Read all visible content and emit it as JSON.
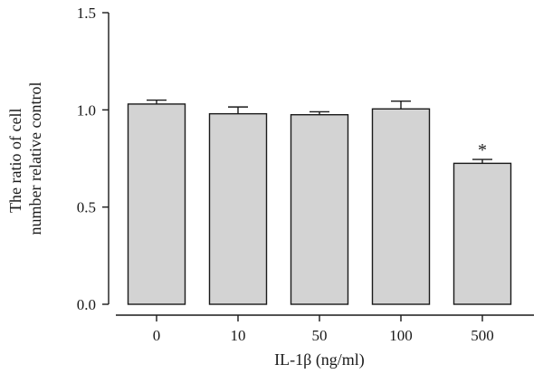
{
  "chart_data": {
    "type": "bar",
    "categories": [
      "0",
      "10",
      "50",
      "100",
      "500"
    ],
    "values": [
      1.03,
      0.98,
      0.975,
      1.005,
      0.725
    ],
    "error": [
      0.02,
      0.035,
      0.015,
      0.04,
      0.02
    ],
    "annotations": [
      "",
      "",
      "",
      "",
      "*"
    ],
    "xlabel": "IL-1β (ng/ml)",
    "ylabel_lines": [
      "The ratio of cell",
      "number relative control"
    ],
    "ylim": [
      0,
      1.5
    ],
    "yticks": [
      "0.0",
      "0.5",
      "1.0",
      "1.5"
    ],
    "bar_color": "#d3d3d3",
    "bar_edge_color": "#1a1a1a",
    "grid": false,
    "legend": "none"
  }
}
